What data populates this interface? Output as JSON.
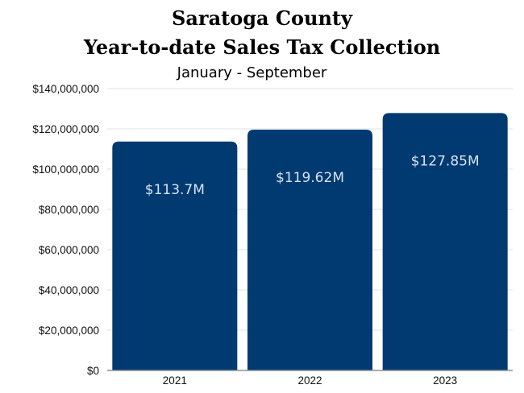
{
  "colors": {
    "bar": "#003a70",
    "grid": "#dde1e6",
    "axis": "#8a8f96"
  },
  "chart_data": {
    "type": "bar",
    "title_line1": "Saratoga County",
    "title_line2": "Year-to-date Sales Tax Collection",
    "subtitle": "January - September",
    "categories": [
      "2021",
      "2022",
      "2023"
    ],
    "values": [
      113700000,
      119620000,
      127850000
    ],
    "data_labels": [
      "$113.7M",
      "$119.62M",
      "$127.85M"
    ],
    "yticks": [
      0,
      20000000,
      40000000,
      60000000,
      80000000,
      100000000,
      120000000,
      140000000
    ],
    "ytick_labels": [
      "$0",
      "$20,000,000",
      "$40,000,000",
      "$60,000,000",
      "$80,000,000",
      "$100,000,000",
      "$120,000,000",
      "$140,000,000"
    ],
    "ylim": [
      0,
      140000000
    ],
    "grid": true,
    "legend": "none"
  }
}
